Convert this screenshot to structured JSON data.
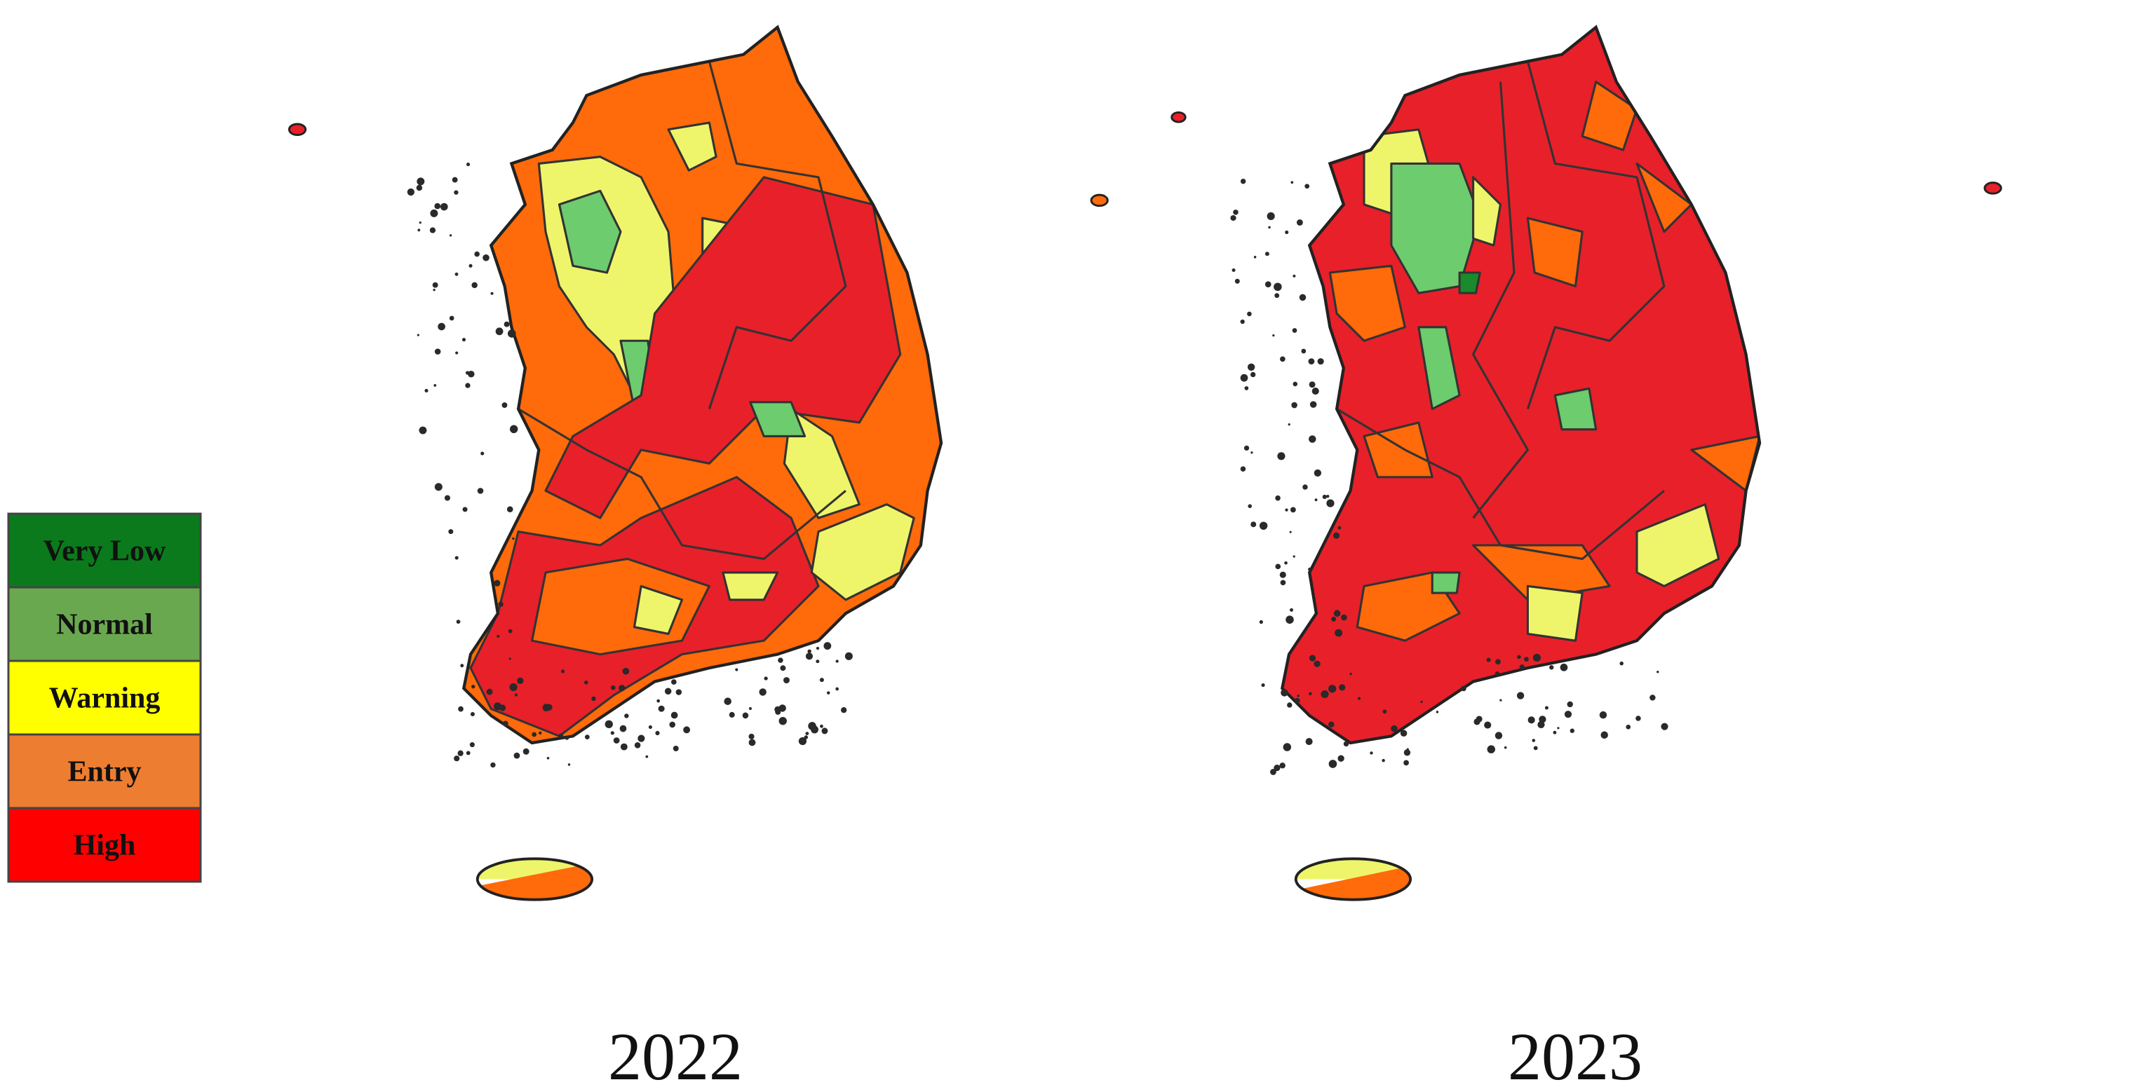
{
  "legend": {
    "items": [
      {
        "label": "Very Low",
        "color": "#0b7a1c"
      },
      {
        "label": "Normal",
        "color": "#6aa84f"
      },
      {
        "label": "Warning",
        "color": "#ffff00"
      },
      {
        "label": "Entry",
        "color": "#ed7d31"
      },
      {
        "label": "High",
        "color": "#ff0000"
      }
    ]
  },
  "maps": [
    {
      "caption": "2022"
    },
    {
      "caption": "2023"
    }
  ]
}
